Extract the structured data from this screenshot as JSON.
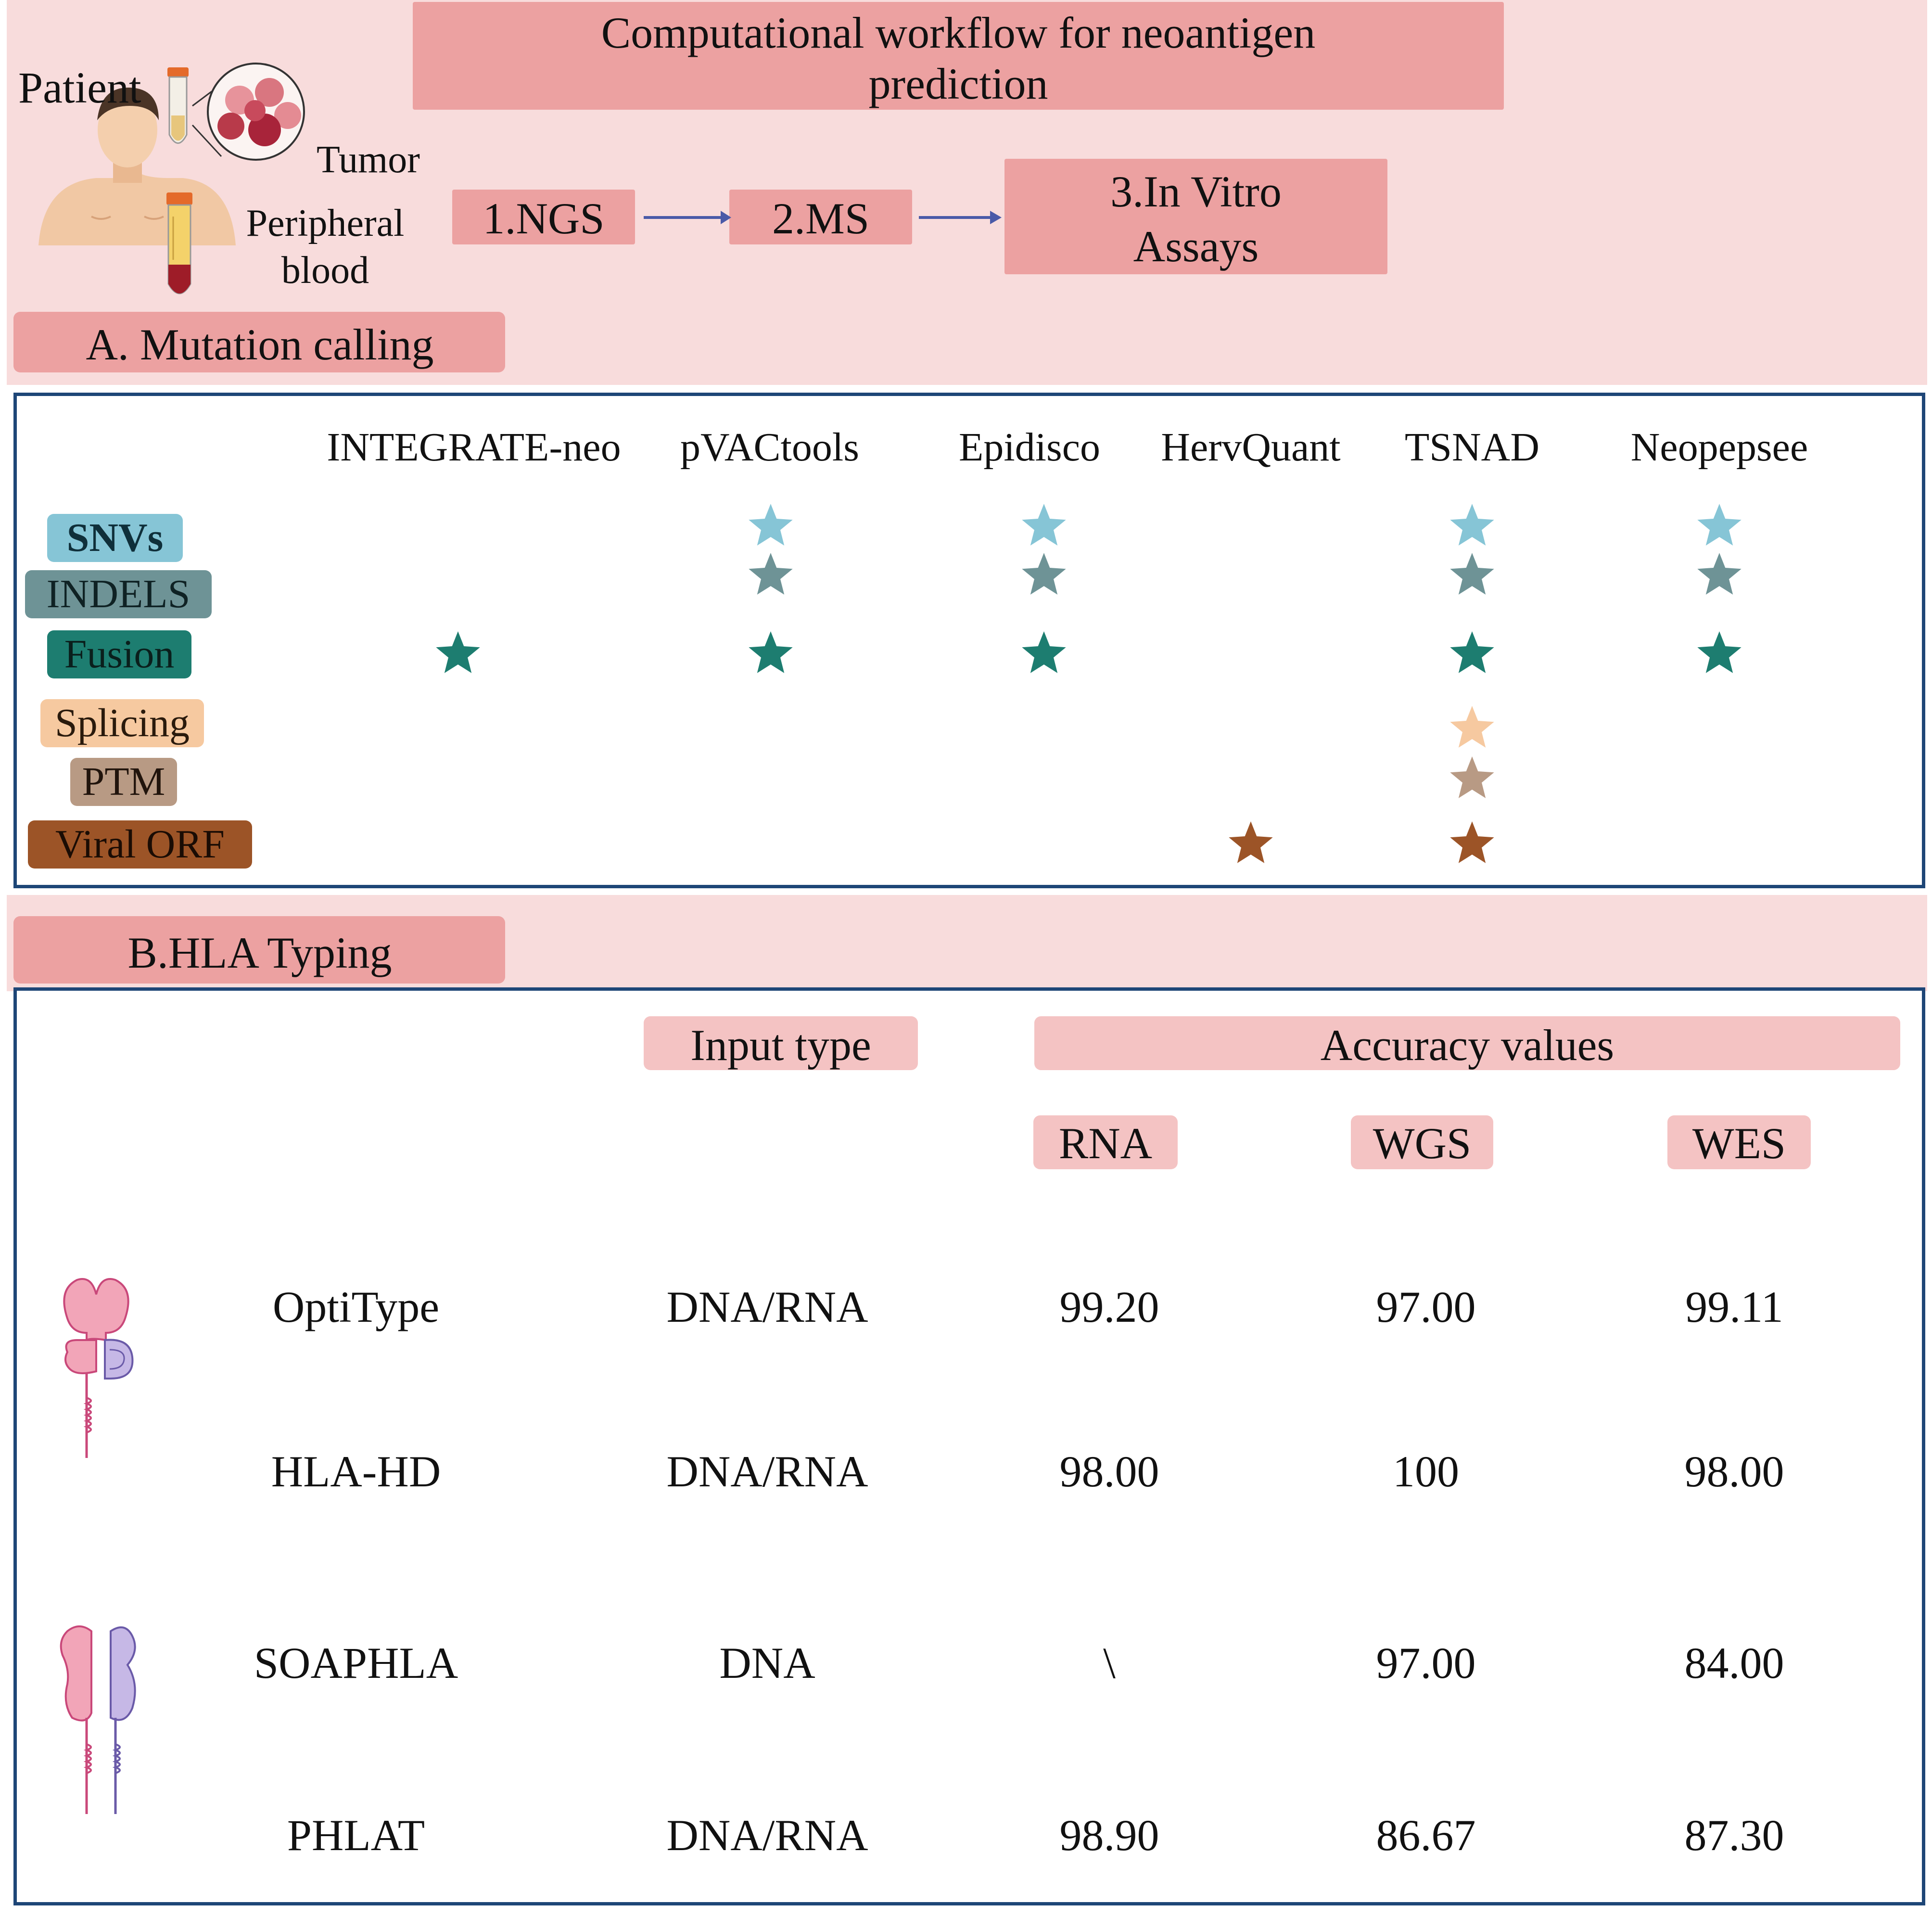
{
  "header": {
    "title_line1": "Computational workflow for neoantigen",
    "title_line2": "prediction",
    "patient_label": "Patient",
    "tumor_label": "Tumor",
    "blood_line1": "Peripheral",
    "blood_line2": "blood",
    "steps": [
      "1.NGS",
      "2.MS",
      "3.In Vitro",
      "Assays"
    ]
  },
  "mutation": {
    "section_title": "A. Mutation calling",
    "tools": [
      "INTEGRATE-neo",
      "pVACtools",
      "Epidisco",
      "HervQuant",
      "TSNAD",
      "Neopepsee"
    ],
    "types": [
      {
        "label": "SNVs",
        "color": "#86c5d6",
        "text_color": "#0f2f3a"
      },
      {
        "label": "INDELS",
        "color": "#6e9396",
        "text_color": "#0f2224"
      },
      {
        "label": "Fusion",
        "color": "#1d7d70",
        "text_color": "#0a1f1c"
      },
      {
        "label": "Splicing",
        "color": "#f6c9a0",
        "text_color": "#2a1a0c"
      },
      {
        "label": "PTM",
        "color": "#b89a84",
        "text_color": "#21140c"
      },
      {
        "label": "Viral ORF",
        "color": "#9c5427",
        "text_color": "#1a0c04"
      }
    ],
    "support_matrix": [
      [
        0,
        1,
        1,
        0,
        1,
        1
      ],
      [
        0,
        1,
        1,
        0,
        1,
        1
      ],
      [
        1,
        1,
        1,
        0,
        1,
        1
      ],
      [
        0,
        0,
        0,
        0,
        1,
        0
      ],
      [
        0,
        0,
        0,
        0,
        1,
        0
      ],
      [
        0,
        0,
        0,
        1,
        1,
        0
      ]
    ]
  },
  "hla": {
    "section_title": "B.HLA Typing",
    "input_type_header": "Input type",
    "accuracy_header": "Accuracy values",
    "sub_headers": [
      "RNA",
      "WGS",
      "WES"
    ],
    "rows": [
      {
        "tool": "OptiType",
        "input": "DNA/RNA",
        "rna": "99.20",
        "wgs": "97.00",
        "wes": "99.11"
      },
      {
        "tool": "HLA-HD",
        "input": "DNA/RNA",
        "rna": "98.00",
        "wgs": "100",
        "wes": "98.00"
      },
      {
        "tool": "SOAPHLA",
        "input": "DNA",
        "rna": "\\",
        "wgs": "97.00",
        "wes": "84.00"
      },
      {
        "tool": "PHLAT",
        "input": "DNA/RNA",
        "rna": "98.90",
        "wgs": "86.67",
        "wes": "87.30"
      }
    ]
  },
  "colors": {
    "background": "#f8dcdc",
    "header_box": "#eca1a1",
    "light_box": "#f4c3c3",
    "panel_border": "#1e4677",
    "arrow": "#4a5aa8"
  }
}
